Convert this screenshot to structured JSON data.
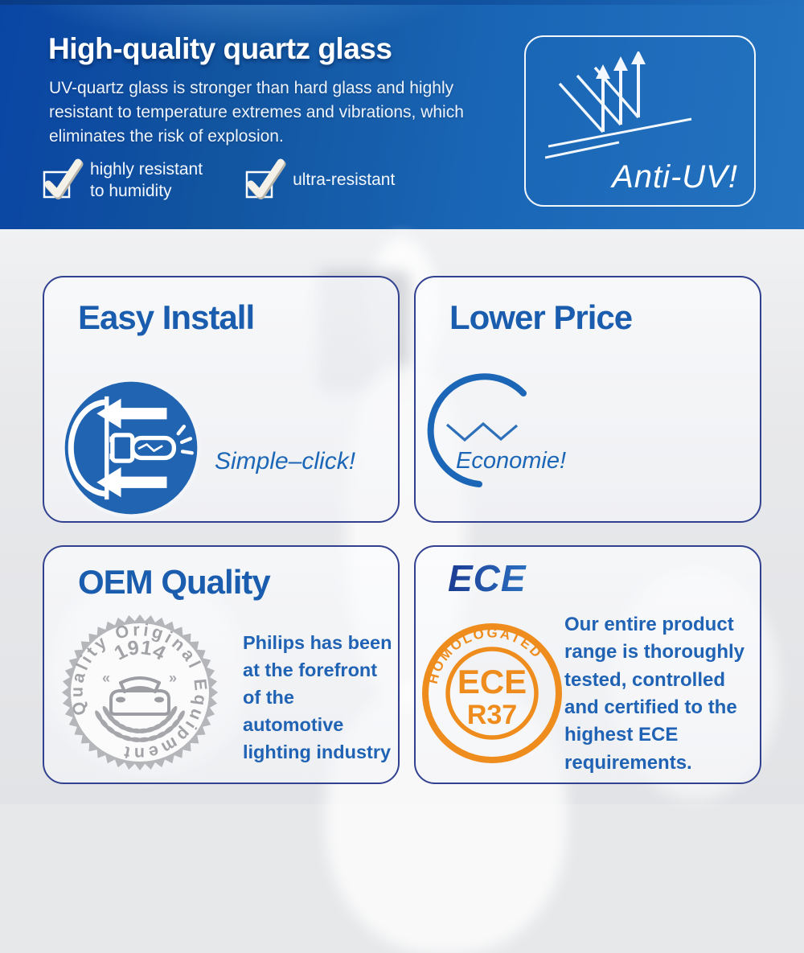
{
  "banner": {
    "title": "High-quality quartz glass",
    "description": "UV-quartz glass is stronger than hard glass and highly\nresistant to temperature extremes and vibrations, which\neliminates the risk of explosion.",
    "checks": [
      {
        "label": "highly resistant\nto humidity"
      },
      {
        "label": "ultra-resistant"
      }
    ],
    "anti_uv": {
      "label": "Anti-UV!",
      "icon": "uv-reflect-arrows-icon"
    }
  },
  "cards": {
    "easy_install": {
      "title": "Easy Install",
      "caption": "Simple–click!",
      "icon": "bulb-click-install-icon"
    },
    "lower_price": {
      "title": "Lower Price",
      "caption": "Economie!",
      "icon": "economy-curve-icon"
    },
    "oem_quality": {
      "title": "OEM Quality",
      "seal": {
        "ring_text": "Quality Original Equipment",
        "year": "1914",
        "left_mark": "«",
        "right_mark": "»",
        "icon": "car-icon"
      },
      "text": "Philips has been\nat the forefront\nof the automotive\nlighting industry"
    },
    "ece": {
      "title": "ECE",
      "stamp": {
        "arc_text": "HOMOLOGATED",
        "line1": "ECE",
        "line2": "R37"
      },
      "text": "Our entire product\nrange is thoroughly\ntested, controlled\nand certified to the\nhighest ECE\nrequirements."
    }
  },
  "colors": {
    "banner_blue_left": "#0a45a4",
    "banner_blue_right": "#2373c0",
    "card_border": "#32418f",
    "title_blue": "#1a5cad",
    "accent_blue": "#1b66b6",
    "text_blue": "#2063b4",
    "stamp_orange": "#ef8c1e",
    "seal_gray": "#a2a3a7"
  }
}
